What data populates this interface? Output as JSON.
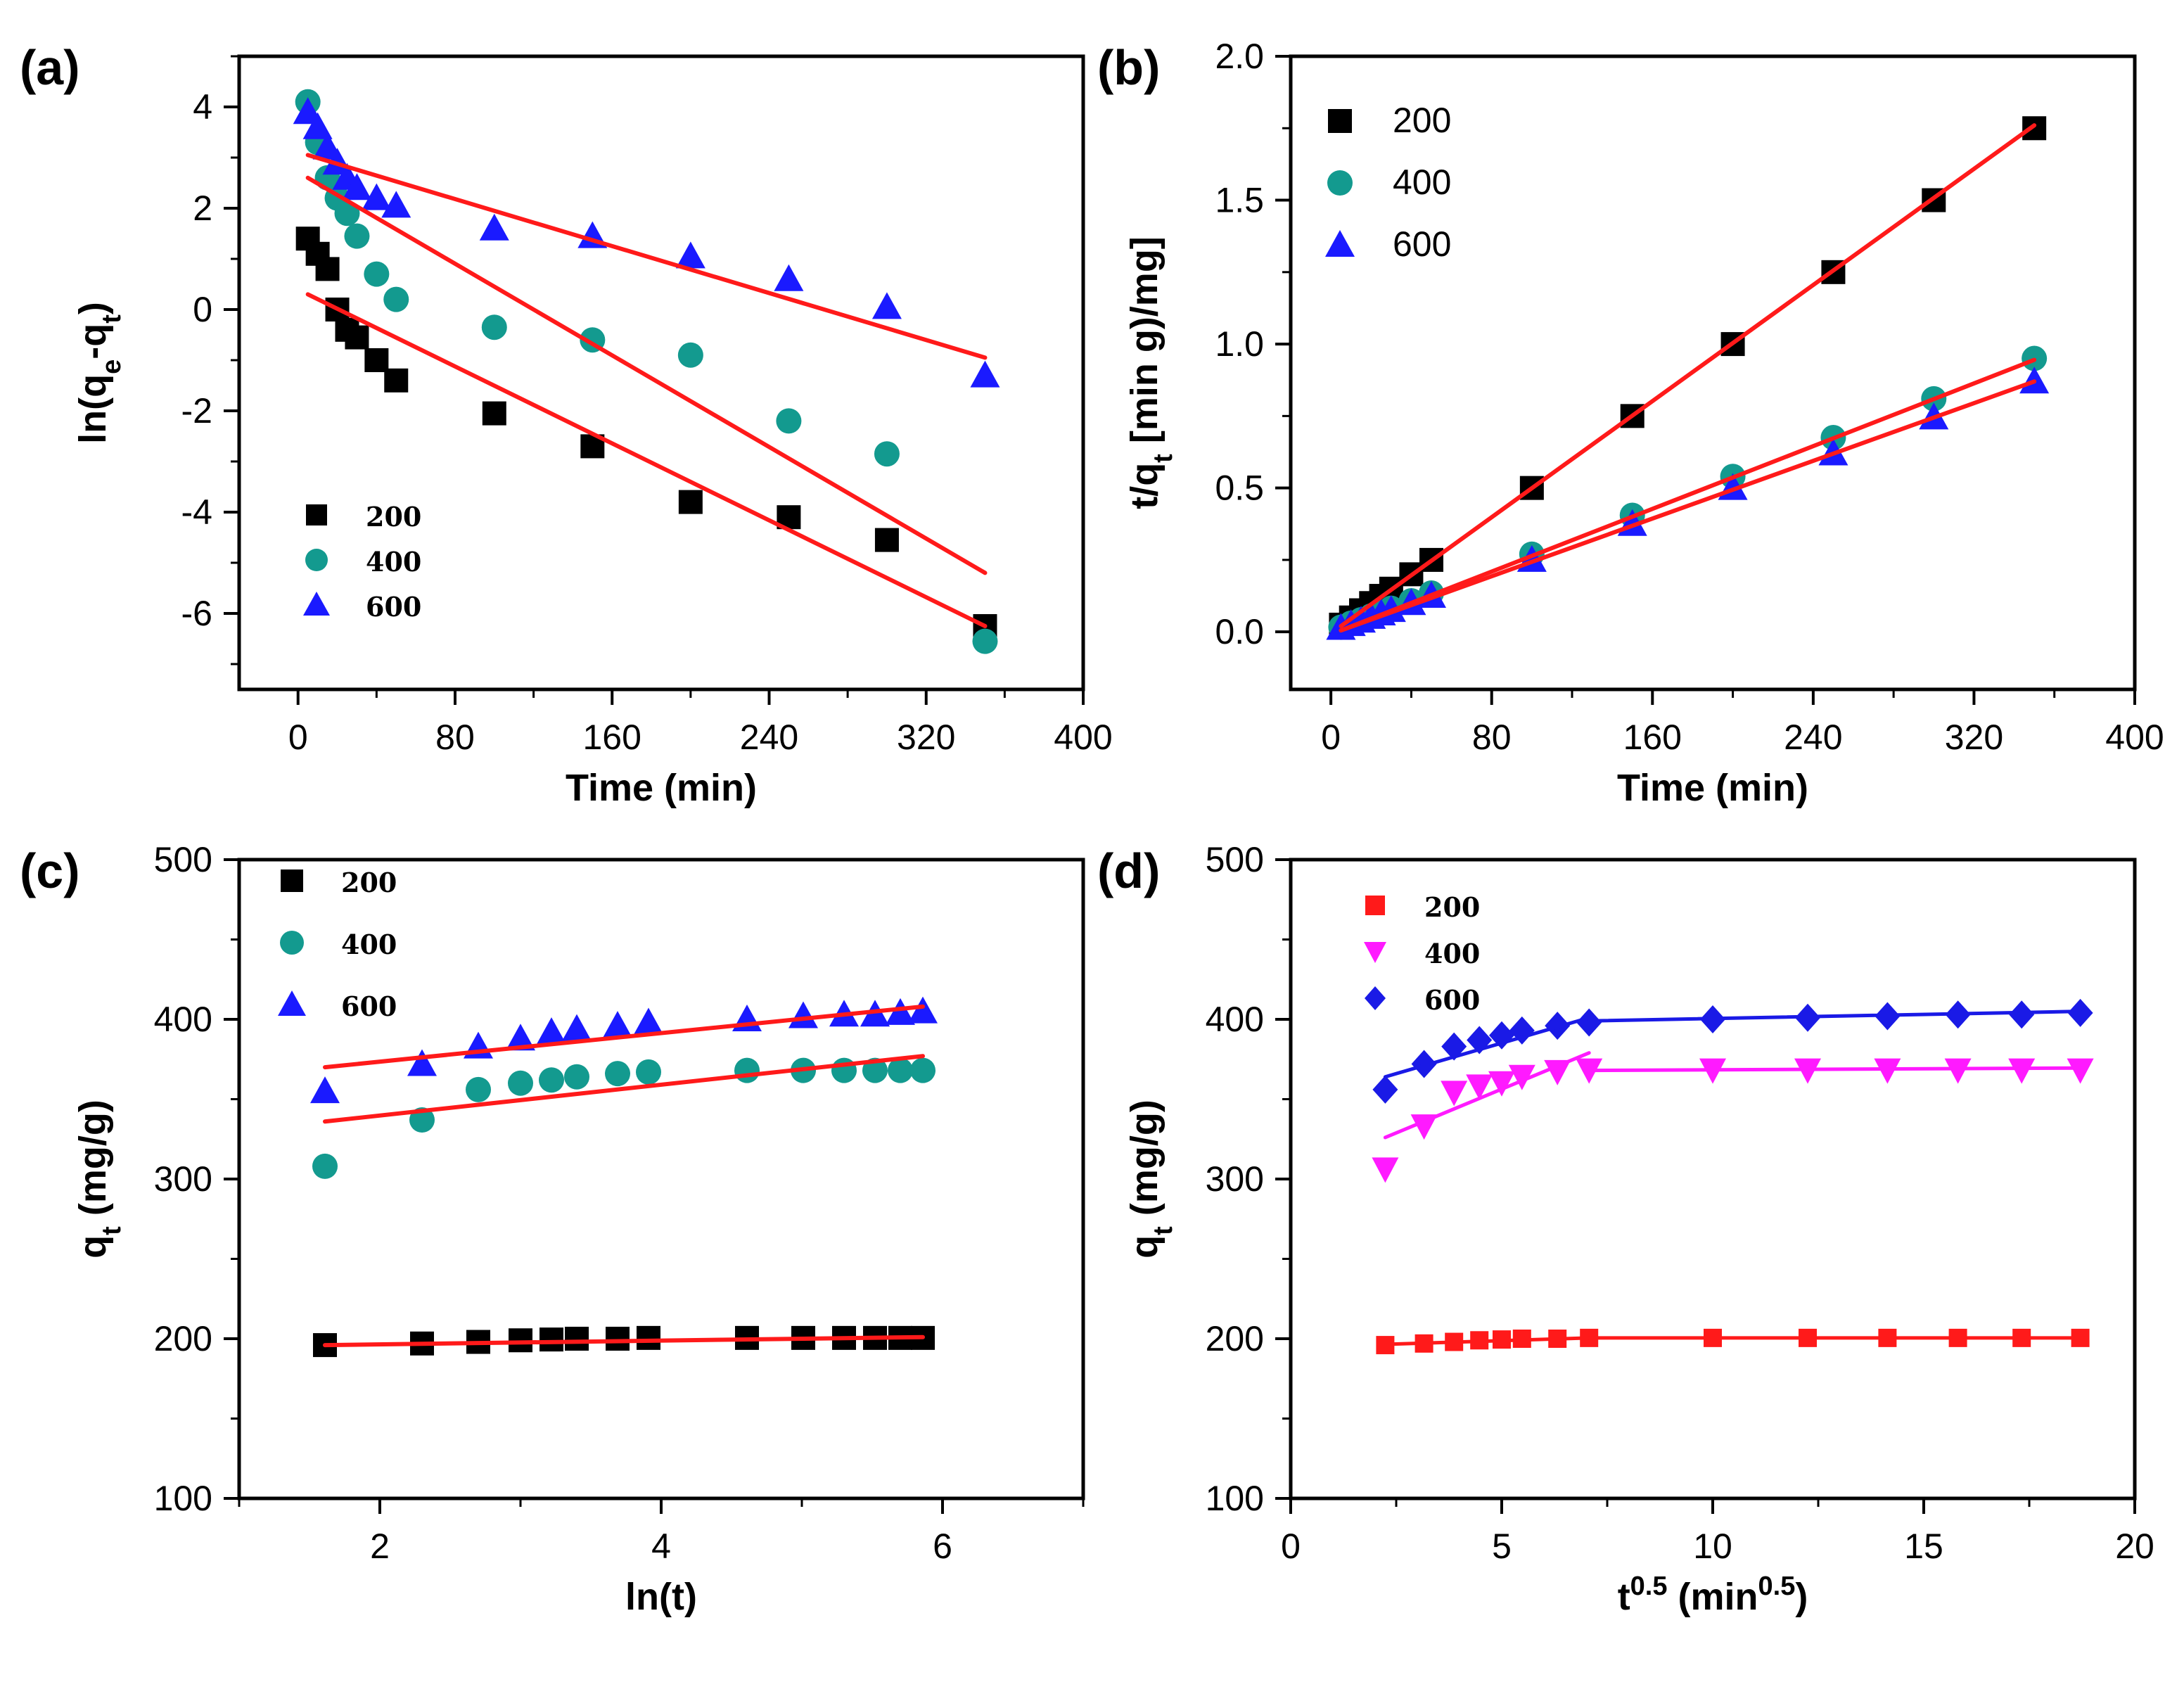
{
  "colors": {
    "black": "#000000",
    "teal": "#139a8f",
    "blue": "#1a1aff",
    "red": "#ff1a1a",
    "magenta": "#ff1aff",
    "blue_d": "#1a1ae6"
  },
  "chart_data": [
    {
      "panel": "(a)",
      "type": "scatter",
      "xlabel": "Time (min)",
      "ylabel_parts": [
        "ln(q",
        "e",
        "-q",
        "t",
        ")"
      ],
      "xlim": [
        -30,
        400
      ],
      "ylim": [
        -7.5,
        5
      ],
      "xticks": [
        0,
        80,
        160,
        240,
        320,
        400
      ],
      "yticks": [
        -6,
        -4,
        -2,
        0,
        2,
        4
      ],
      "legend": {
        "placement": "bottom-left",
        "style": "serif"
      },
      "series": [
        {
          "name": "200",
          "marker": "square",
          "color": "#000000",
          "x": [
            5,
            10,
            15,
            20,
            25,
            30,
            40,
            50,
            100,
            150,
            200,
            250,
            300,
            350
          ],
          "y": [
            1.4,
            1.1,
            0.8,
            0.0,
            -0.4,
            -0.55,
            -1.0,
            -1.4,
            -2.05,
            -2.7,
            -3.8,
            -4.1,
            -4.55,
            -6.25
          ],
          "fit": [
            [
              5,
              0.3
            ],
            [
              350,
              -6.25
            ]
          ]
        },
        {
          "name": "400",
          "marker": "circle",
          "color": "#139a8f",
          "x": [
            5,
            10,
            15,
            20,
            25,
            30,
            40,
            50,
            100,
            150,
            200,
            250,
            300,
            350
          ],
          "y": [
            4.1,
            3.3,
            2.6,
            2.2,
            1.9,
            1.45,
            0.7,
            0.2,
            -0.35,
            -0.6,
            -0.9,
            -2.2,
            -2.85,
            -6.55
          ],
          "fit": [
            [
              5,
              2.6
            ],
            [
              350,
              -5.2
            ]
          ]
        },
        {
          "name": "600",
          "marker": "triangle",
          "color": "#1a1aff",
          "x": [
            5,
            10,
            15,
            20,
            25,
            30,
            40,
            50,
            100,
            150,
            200,
            250,
            300,
            350
          ],
          "y": [
            3.9,
            3.6,
            3.2,
            2.9,
            2.6,
            2.4,
            2.2,
            2.05,
            1.6,
            1.45,
            1.05,
            0.6,
            0.05,
            -1.3
          ],
          "fit": [
            [
              5,
              3.05
            ],
            [
              350,
              -0.95
            ]
          ]
        }
      ]
    },
    {
      "panel": "(b)",
      "type": "scatter",
      "xlabel": "Time (min)",
      "ylabel_parts": [
        "t/q",
        "t",
        " [min g)/mg]"
      ],
      "xlim": [
        -20,
        400
      ],
      "ylim": [
        -0.2,
        2.0
      ],
      "xticks": [
        0,
        80,
        160,
        240,
        320,
        400
      ],
      "yticks": [
        0.0,
        0.5,
        1.0,
        1.5,
        2.0
      ],
      "ytick_labels": [
        "0.0",
        "0.5",
        "1.0",
        "1.5",
        "2.0"
      ],
      "legend": {
        "placement": "top-left",
        "style": "sans"
      },
      "series": [
        {
          "name": "200",
          "marker": "square",
          "color": "#000000",
          "x": [
            5,
            10,
            15,
            20,
            25,
            30,
            40,
            50,
            100,
            150,
            200,
            250,
            300,
            350
          ],
          "y": [
            0.025,
            0.05,
            0.075,
            0.1,
            0.125,
            0.15,
            0.2,
            0.25,
            0.5,
            0.75,
            1.0,
            1.25,
            1.5,
            1.75
          ],
          "fit": [
            [
              5,
              0.02
            ],
            [
              350,
              1.76
            ]
          ]
        },
        {
          "name": "400",
          "marker": "circle",
          "color": "#139a8f",
          "x": [
            5,
            10,
            15,
            20,
            25,
            30,
            40,
            50,
            100,
            150,
            200,
            250,
            300,
            350
          ],
          "y": [
            0.016,
            0.03,
            0.042,
            0.055,
            0.068,
            0.082,
            0.108,
            0.135,
            0.27,
            0.405,
            0.54,
            0.675,
            0.81,
            0.95
          ],
          "fit": [
            [
              5,
              0.005
            ],
            [
              350,
              0.945
            ]
          ]
        },
        {
          "name": "600",
          "marker": "triangle",
          "color": "#1a1aff",
          "x": [
            5,
            10,
            15,
            20,
            25,
            30,
            40,
            50,
            100,
            150,
            200,
            250,
            300,
            350
          ],
          "y": [
            0.014,
            0.027,
            0.039,
            0.052,
            0.064,
            0.076,
            0.1,
            0.125,
            0.25,
            0.375,
            0.5,
            0.62,
            0.745,
            0.87
          ],
          "fit": [
            [
              5,
              0.005
            ],
            [
              350,
              0.87
            ]
          ]
        }
      ]
    },
    {
      "panel": "(c)",
      "type": "scatter",
      "xlabel": "ln(t)",
      "ylabel_parts": [
        "q",
        "t",
        " (mg/g)"
      ],
      "xlim": [
        1.0,
        7.0
      ],
      "ylim": [
        100,
        500
      ],
      "xticks": [
        2,
        4,
        6
      ],
      "yticks": [
        100,
        200,
        300,
        400,
        500
      ],
      "legend": {
        "placement": "top-left",
        "style": "serif"
      },
      "series": [
        {
          "name": "200",
          "marker": "square",
          "color": "#000000",
          "x": [
            1.61,
            2.3,
            2.7,
            3.0,
            3.22,
            3.4,
            3.69,
            3.91,
            4.61,
            5.01,
            5.3,
            5.52,
            5.7,
            5.86
          ],
          "y": [
            196,
            197,
            198,
            199,
            199.5,
            200,
            200,
            200.5,
            200.5,
            200.5,
            200.5,
            200.5,
            200.5,
            200.5
          ],
          "fit": [
            [
              1.61,
              196
            ],
            [
              5.86,
              201
            ]
          ]
        },
        {
          "name": "400",
          "marker": "circle",
          "color": "#139a8f",
          "x": [
            1.61,
            2.3,
            2.7,
            3.0,
            3.22,
            3.4,
            3.69,
            3.91,
            4.61,
            5.01,
            5.3,
            5.52,
            5.7,
            5.86
          ],
          "y": [
            308,
            337,
            356,
            360,
            362,
            364,
            366,
            367,
            368,
            368,
            368,
            368,
            368,
            368
          ],
          "fit": [
            [
              1.61,
              336
            ],
            [
              5.86,
              377
            ]
          ]
        },
        {
          "name": "600",
          "marker": "triangle",
          "color": "#1a1aff",
          "x": [
            1.61,
            2.3,
            2.7,
            3.0,
            3.22,
            3.4,
            3.69,
            3.91,
            4.61,
            5.01,
            5.3,
            5.52,
            5.7,
            5.86
          ],
          "y": [
            355,
            372,
            383,
            388,
            392,
            394,
            396,
            398,
            400,
            402,
            403,
            403,
            404,
            405
          ],
          "fit": [
            [
              1.61,
              370
            ],
            [
              5.86,
              408
            ]
          ]
        }
      ]
    },
    {
      "panel": "(d)",
      "type": "line",
      "xlabel_parts": [
        "t",
        "0.5",
        " (min",
        "0.5",
        ")"
      ],
      "ylabel_parts": [
        "q",
        "t",
        " (mg/g)"
      ],
      "xlim": [
        0,
        20
      ],
      "ylim": [
        100,
        500
      ],
      "xticks": [
        0,
        5,
        10,
        15,
        20
      ],
      "yticks": [
        100,
        200,
        300,
        400,
        500
      ],
      "legend": {
        "placement": "top-left",
        "style": "serif"
      },
      "series": [
        {
          "name": "200",
          "marker": "square",
          "color": "#ff1a1a",
          "x": [
            2.24,
            3.16,
            3.87,
            4.47,
            5.0,
            5.48,
            6.32,
            7.07,
            10.0,
            12.25,
            14.14,
            15.81,
            17.32,
            18.71
          ],
          "y": [
            196,
            197,
            198,
            199,
            199.5,
            200,
            200,
            200.5,
            200.5,
            200.5,
            200.5,
            200.5,
            200.5,
            200.5
          ],
          "fits": [
            [
              [
                2.24,
                196.5
              ],
              [
                7.07,
                200.5
              ]
            ],
            [
              [
                7.07,
                200.5
              ],
              [
                18.71,
                200.5
              ]
            ]
          ]
        },
        {
          "name": "400",
          "marker": "triangle-down",
          "color": "#ff1aff",
          "x": [
            2.24,
            3.16,
            3.87,
            4.47,
            5.0,
            5.48,
            6.32,
            7.07,
            10.0,
            12.25,
            14.14,
            15.81,
            17.32,
            18.71
          ],
          "y": [
            306,
            333,
            354,
            358,
            360,
            364,
            367,
            368,
            368,
            368,
            368,
            368,
            368,
            368
          ],
          "fits": [
            [
              [
                2.24,
                326
              ],
              [
                7.07,
                379
              ]
            ],
            [
              [
                7.07,
                368
              ],
              [
                18.71,
                369.5
              ]
            ]
          ]
        },
        {
          "name": "600",
          "marker": "diamond",
          "color": "#1a1ae6",
          "x": [
            2.24,
            3.16,
            3.87,
            4.47,
            5.0,
            5.48,
            6.32,
            7.07,
            10.0,
            12.25,
            14.14,
            15.81,
            17.32,
            18.71
          ],
          "y": [
            356,
            372,
            383,
            387,
            390,
            393,
            396,
            398,
            400,
            401,
            402,
            403,
            403,
            404
          ],
          "fits": [
            [
              [
                2.24,
                364
              ],
              [
                7.07,
                401
              ]
            ],
            [
              [
                7.07,
                399
              ],
              [
                18.71,
                405
              ]
            ]
          ]
        }
      ]
    }
  ]
}
